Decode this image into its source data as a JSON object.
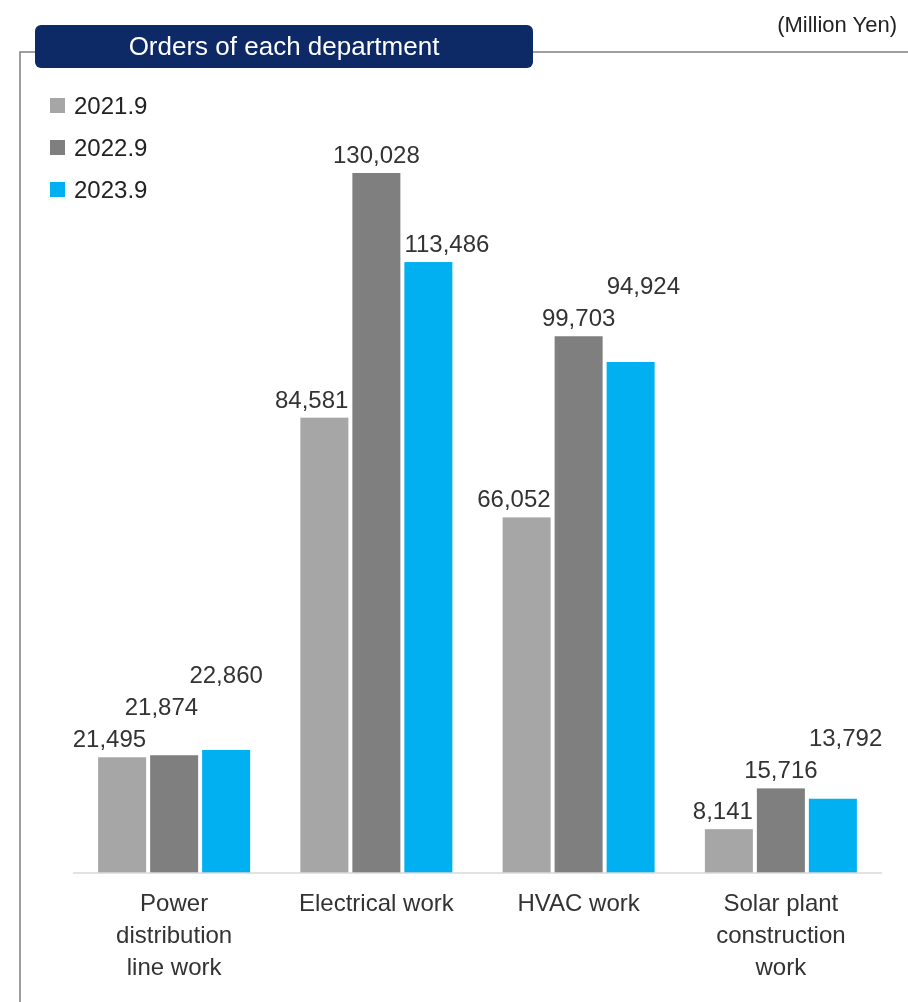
{
  "chart_data": {
    "type": "bar",
    "title": "Orders of each department",
    "annotations": [
      "(Million Yen)"
    ],
    "categories": [
      "Power distribution line work",
      "Electrical work",
      "HVAC work",
      "Solar plant construction work"
    ],
    "series": [
      {
        "name": "2021.9",
        "color": "#a6a6a6",
        "values": [
          21495,
          84581,
          66052,
          8141
        ],
        "value_labels": [
          "21,495",
          "84,581",
          "66,052",
          "8,141"
        ]
      },
      {
        "name": "2022.9",
        "color": "#7f7f7f",
        "values": [
          21874,
          130028,
          99703,
          15716
        ],
        "value_labels": [
          "21,874",
          "130,028",
          "99,703",
          "15,716"
        ]
      },
      {
        "name": "2023.9",
        "color": "#00b0f0",
        "values": [
          22860,
          113486,
          94924,
          13792
        ],
        "value_labels": [
          "22,860",
          "113,486",
          "94,924",
          "13,792"
        ]
      }
    ],
    "legend": "top left",
    "grid": false
  }
}
